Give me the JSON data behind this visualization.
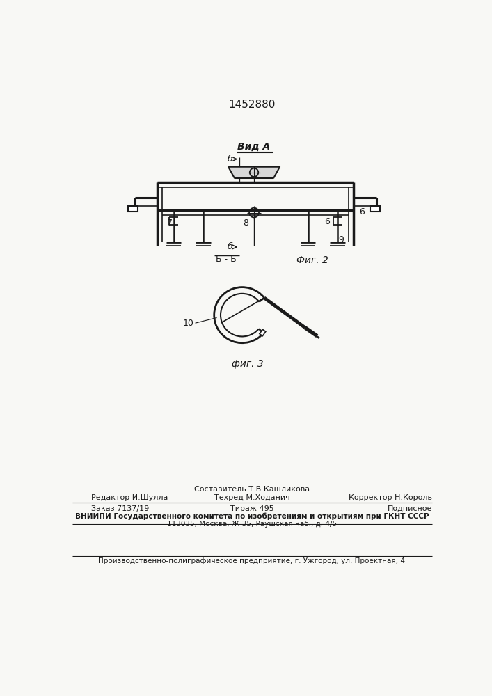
{
  "patent_number": "1452880",
  "fig2_label": "Фиг. 2",
  "fig3_label": "фиг. 3",
  "vid_a_label": "Вид А",
  "bg_color": "#f8f8f5",
  "line_color": "#1a1a1a",
  "footer": {
    "line0_center": "Составитель Т.В.Кашликова",
    "line1_left": "Редактор И.Шулла",
    "line1_center": "Техред М.Ходанич",
    "line1_right": "Корректор Н.Король",
    "line2_left": "Заказ 7137/19",
    "line2_center": "Тираж 495",
    "line2_right": "Подписное",
    "line3": "ВНИИПИ Государственного комитета по изобретениям и открытиям при ГКНТ СССР",
    "line4": "113035, Москва, Ж-35, Раушская наб., д. 4/5",
    "line5": "Производственно-полиграфическое предприятие, г. Ужгород, ул. Проектная, 4"
  }
}
